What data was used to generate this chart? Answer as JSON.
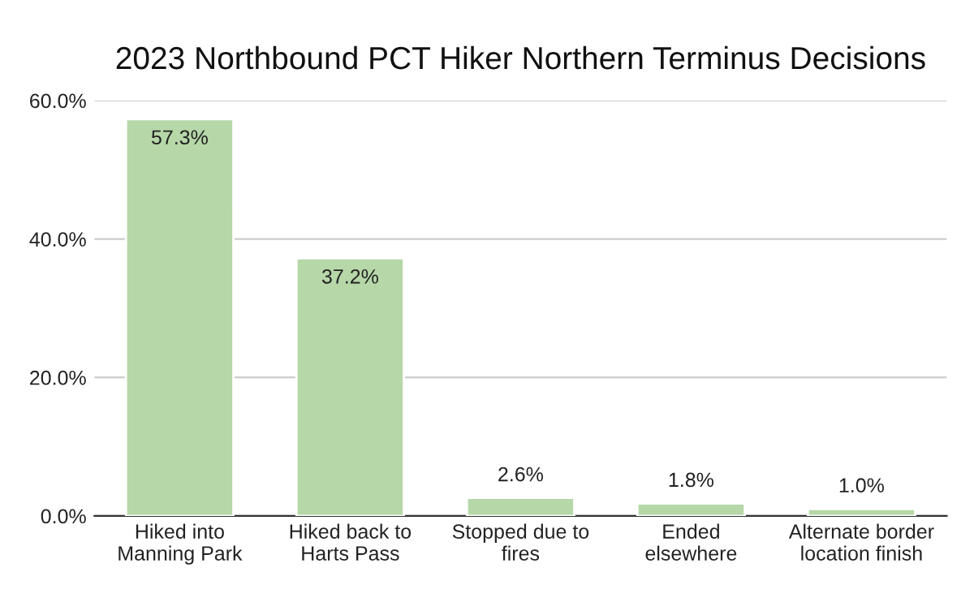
{
  "chart_data": {
    "type": "bar",
    "title": "2023 Northbound PCT Hiker Northern Terminus Decisions",
    "categories": [
      "Hiked into\nManning Park",
      "Hiked back to\nHarts Pass",
      "Stopped due to\nfires",
      "Ended\nelsewhere",
      "Alternate border\nlocation finish"
    ],
    "values": [
      57.3,
      37.2,
      2.6,
      1.8,
      1.0
    ],
    "value_labels": [
      "57.3%",
      "37.2%",
      "2.6%",
      "1.8%",
      "1.0%"
    ],
    "color": "#b6d7a8",
    "ylim": [
      0,
      60
    ],
    "yticks": [
      {
        "value": 0,
        "label": "0.0%"
      },
      {
        "value": 20,
        "label": "20.0%"
      },
      {
        "value": 40,
        "label": "40.0%"
      },
      {
        "value": 60,
        "label": "60.0%"
      }
    ],
    "grid": "y"
  }
}
